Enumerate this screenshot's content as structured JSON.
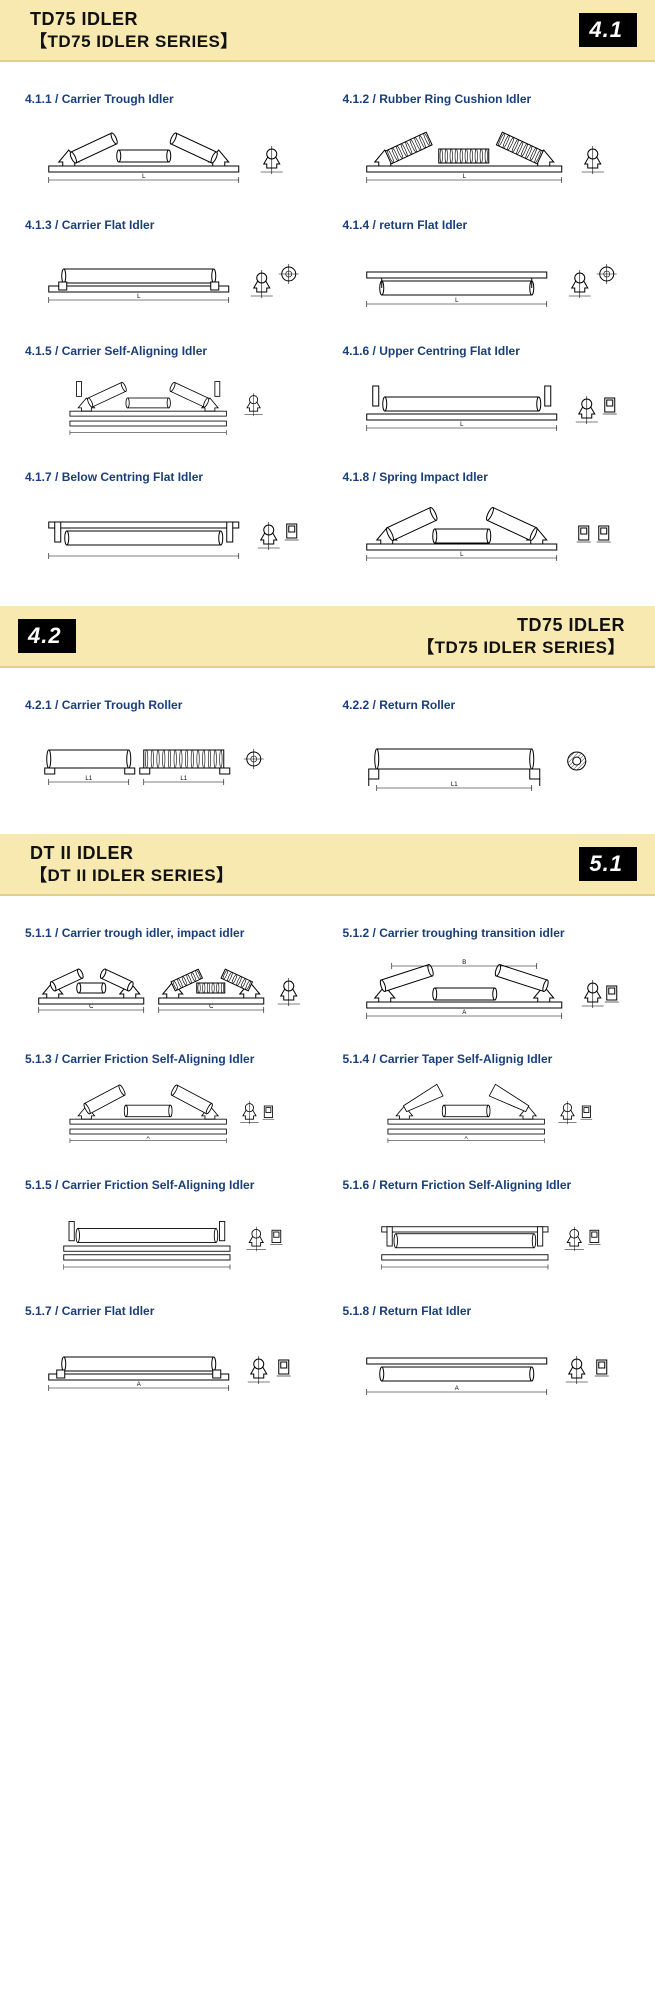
{
  "colors": {
    "header_bg": "#f7e9b0",
    "header_border": "#e0d088",
    "title_text": "#111111",
    "badge_bg": "#000000",
    "badge_text": "#ffffff",
    "item_title": "#1a3e7a",
    "page_bg": "#ffffff",
    "diagram_stroke": "#000000"
  },
  "sections": [
    {
      "badge": "4.1",
      "align": "left",
      "title_line1": "TD75 IDLER",
      "title_line2": "【TD75 IDLER SERIES】",
      "items": [
        {
          "code": "4.1.1",
          "name": "Carrier Trough Idler",
          "type": "trough"
        },
        {
          "code": "4.1.2",
          "name": "Rubber Ring Cushion Idler",
          "type": "trough_ring"
        },
        {
          "code": "4.1.3",
          "name": "Carrier Flat Idler",
          "type": "flat"
        },
        {
          "code": "4.1.4",
          "name": "return Flat Idler",
          "type": "return_flat"
        },
        {
          "code": "4.1.5",
          "name": "Carrier Self-Aligning Idler",
          "type": "trough_align"
        },
        {
          "code": "4.1.6",
          "name": "Upper Centring Flat Idler",
          "type": "flat_centring"
        },
        {
          "code": "4.1.7",
          "name": "Below Centring Flat Idler",
          "type": "flat_below"
        },
        {
          "code": "4.1.8",
          "name": "Spring Impact Idler",
          "type": "trough_spring"
        }
      ]
    },
    {
      "badge": "4.2",
      "align": "right",
      "title_line1": "TD75 IDLER",
      "title_line2": "【TD75 IDLER SERIES】",
      "items": [
        {
          "code": "4.2.1",
          "name": "Carrier Trough Roller",
          "type": "roller_pair"
        },
        {
          "code": "4.2.2",
          "name": "Return Roller",
          "type": "roller_single"
        }
      ]
    },
    {
      "badge": "5.1",
      "align": "left",
      "title_line1": "DT II IDLER",
      "title_line2": "【DT II IDLER SERIES】",
      "items": [
        {
          "code": "5.1.1",
          "name": "Carrier trough idler, impact idler",
          "type": "trough_pair"
        },
        {
          "code": "5.1.2",
          "name": "Carrier troughing transition idler",
          "type": "trough_trans"
        },
        {
          "code": "5.1.3",
          "name": "Carrier Friction Self-Aligning Idler",
          "type": "trough_friction"
        },
        {
          "code": "5.1.4",
          "name": "Carrier Taper Self-Alignig Idler",
          "type": "trough_taper"
        },
        {
          "code": "5.1.5",
          "name": "Carrier Friction Self-Aligning Idler",
          "type": "flat_friction"
        },
        {
          "code": "5.1.6",
          "name": "Return Friction Self-Aligning Idler",
          "type": "return_friction"
        },
        {
          "code": "5.1.7",
          "name": "Carrier Flat Idler",
          "type": "flat2"
        },
        {
          "code": "5.1.8",
          "name": "Return Flat Idler",
          "type": "return_flat2"
        }
      ]
    }
  ]
}
